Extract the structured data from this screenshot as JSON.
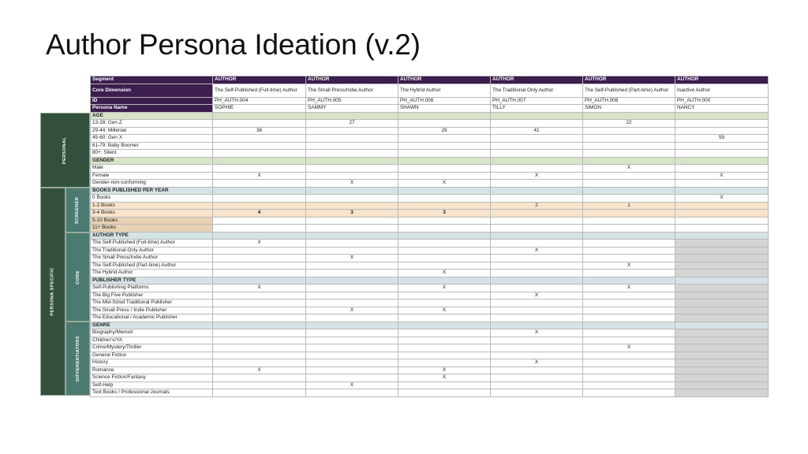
{
  "title": "Author Persona Ideation (v.2)",
  "header": {
    "segment_label": "Segment",
    "segments": [
      "AUTHOR",
      "AUTHOR",
      "AUTHOR",
      "AUTHOR",
      "AUTHOR",
      "AUTHOR"
    ],
    "core_label": "Core Dimension",
    "core": [
      "The Self-Published (Full-time) Author",
      "The Small Press/Indie Author",
      "The Hybrid Author",
      "The Traditional Only Author",
      "The Self-Published (Part-time) Author",
      "Inactive Author"
    ],
    "id_label": "ID",
    "ids": [
      "PH_AUTH.004",
      "PH_AUTH.005",
      "PH_AUTH.006",
      "PH_AUTH.007",
      "PH_AUTH.008",
      "PH_AUTH.000"
    ],
    "name_label": "Persona Name",
    "names": [
      "SOPHIE",
      "SAMMY",
      "SHAWN",
      "TILLY",
      "SIMON",
      "NANCY"
    ]
  },
  "bands": {
    "personal": "PERSONAL",
    "persona_specific": "PERSONA SPECIFIC",
    "screener": "SCREENER",
    "core": "CORE",
    "differentiators": "DIFFERENTIATORS"
  },
  "rows": [
    {
      "label": "AGE",
      "type": "sec-green",
      "vals": [
        "",
        "",
        "",
        "",
        "",
        ""
      ]
    },
    {
      "label": "13-28: Gen Z",
      "vals": [
        "",
        "27",
        "",
        "",
        "22",
        ""
      ]
    },
    {
      "label": "29-44: Millenial",
      "vals": [
        "36",
        "",
        "29",
        "41",
        "",
        ""
      ]
    },
    {
      "label": "45-60: Gen X",
      "vals": [
        "",
        "",
        "",
        "",
        "",
        "59"
      ]
    },
    {
      "label": "61-79: Baby Boomer",
      "vals": [
        "",
        "",
        "",
        "",
        "",
        ""
      ]
    },
    {
      "label": "80+: Silent",
      "vals": [
        "",
        "",
        "",
        "",
        "",
        ""
      ]
    },
    {
      "label": "GENDER",
      "type": "sec-green",
      "vals": [
        "",
        "",
        "",
        "",
        "",
        ""
      ]
    },
    {
      "label": "Male",
      "vals": [
        "",
        "",
        "",
        "",
        "X",
        ""
      ]
    },
    {
      "label": "Female",
      "vals": [
        "X",
        "",
        "",
        "X",
        "",
        "X"
      ]
    },
    {
      "label": "Gender-non-conforming",
      "vals": [
        "",
        "X",
        "X",
        "",
        "",
        ""
      ]
    },
    {
      "label": "BOOKS PUBLISHED PER YEAR",
      "type": "sec-blue",
      "vals": [
        "",
        "",
        "",
        "",
        "",
        ""
      ]
    },
    {
      "label": "0 Books",
      "vals": [
        "",
        "",
        "",
        "",
        "",
        "X"
      ]
    },
    {
      "label": "1-2 Books",
      "type": "hl-orange",
      "vals": [
        "",
        "",
        "",
        "2",
        "1",
        ""
      ]
    },
    {
      "label": "3-4 Books",
      "type": "hl-orange bold",
      "vals": [
        "4",
        "3",
        "3",
        "",
        "",
        ""
      ]
    },
    {
      "label": "5-10 Books",
      "type": "tan",
      "vals": [
        "",
        "",
        "",
        "",
        "",
        ""
      ]
    },
    {
      "label": "11+ Books",
      "type": "tan",
      "vals": [
        "",
        "",
        "",
        "",
        "",
        ""
      ]
    },
    {
      "label": "AUTHOR TYPE",
      "type": "sec-blue",
      "vals": [
        "",
        "",
        "",
        "",
        "",
        ""
      ]
    },
    {
      "label": "The Self-Published (Full-time) Author",
      "gray": true,
      "vals": [
        "X",
        "",
        "",
        "",
        "",
        ""
      ]
    },
    {
      "label": "The Traditional-Only Author",
      "gray": true,
      "vals": [
        "",
        "",
        "",
        "X",
        "",
        ""
      ]
    },
    {
      "label": "The Small Press/Indie Author",
      "gray": true,
      "vals": [
        "",
        "X",
        "",
        "",
        "",
        ""
      ]
    },
    {
      "label": "The Self-Published (Part-time) Author",
      "gray": true,
      "vals": [
        "",
        "",
        "",
        "",
        "X",
        ""
      ]
    },
    {
      "label": "The Hybrid Author",
      "gray": true,
      "vals": [
        "",
        "",
        "X",
        "",
        "",
        ""
      ]
    },
    {
      "label": "PUBLISHER TYPE",
      "type": "sec-blue",
      "vals": [
        "",
        "",
        "",
        "",
        "",
        ""
      ]
    },
    {
      "label": "Self-Publishing Platforms",
      "gray": true,
      "vals": [
        "X",
        "",
        "X",
        "",
        "X",
        ""
      ]
    },
    {
      "label": "The Big Five Publisher",
      "gray": true,
      "vals": [
        "",
        "",
        "",
        "X",
        "",
        ""
      ]
    },
    {
      "label": "The Mid-Sized Traditional Publisher",
      "gray": true,
      "vals": [
        "",
        "",
        "",
        "",
        "",
        ""
      ]
    },
    {
      "label": "The Small Press / Indie Publisher",
      "gray": true,
      "vals": [
        "",
        "X",
        "X",
        "",
        "",
        ""
      ]
    },
    {
      "label": "The Educational / Academic Publisher",
      "gray": true,
      "vals": [
        "",
        "",
        "",
        "",
        "",
        ""
      ]
    },
    {
      "label": "GENRE",
      "type": "sec-blue",
      "vals": [
        "",
        "",
        "",
        "",
        "",
        ""
      ]
    },
    {
      "label": "Biography/Memoir",
      "gray": true,
      "vals": [
        "",
        "",
        "",
        "X",
        "",
        ""
      ]
    },
    {
      "label": "Children's/YA",
      "gray": true,
      "vals": [
        "",
        "",
        "",
        "",
        "",
        ""
      ]
    },
    {
      "label": "Crime/Mystery/Thriller",
      "gray": true,
      "vals": [
        "",
        "",
        "",
        "",
        "X",
        ""
      ]
    },
    {
      "label": "General Fiction",
      "gray": true,
      "vals": [
        "",
        "",
        "",
        "",
        "",
        ""
      ]
    },
    {
      "label": "History",
      "gray": true,
      "vals": [
        "",
        "",
        "",
        "X",
        "",
        ""
      ]
    },
    {
      "label": "Romance",
      "gray": true,
      "vals": [
        "X",
        "",
        "X",
        "",
        "",
        ""
      ]
    },
    {
      "label": "Science Fiction/Fantasy",
      "gray": true,
      "vals": [
        "",
        "",
        "X",
        "",
        "",
        ""
      ]
    },
    {
      "label": "Self-Help",
      "gray": true,
      "vals": [
        "",
        "X",
        "",
        "",
        "",
        ""
      ]
    },
    {
      "label": "Text Books / Professional Journals",
      "gray": true,
      "vals": [
        "",
        "",
        "",
        "",
        "",
        ""
      ]
    }
  ],
  "colors": {
    "header_purple": "#3b1d4e",
    "band_dark_green": "#33503e",
    "band_teal": "#4a7a70",
    "section_green": "#d8e4c8",
    "section_blue": "#d6e3e6",
    "highlight_orange": "#f8e3cc",
    "gray_cell": "#d4d4d4"
  }
}
